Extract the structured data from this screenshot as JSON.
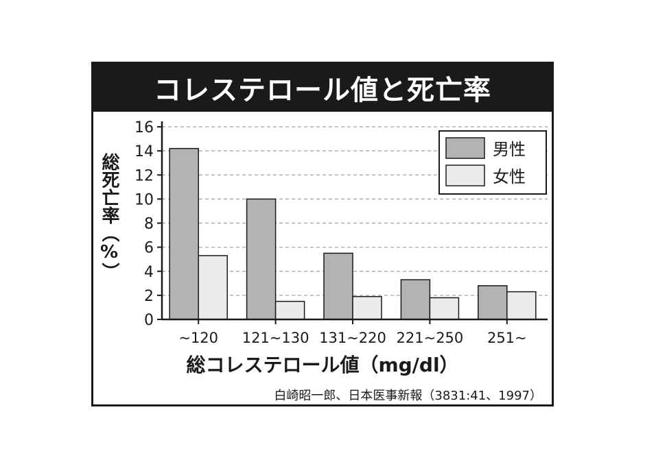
{
  "title": "コレステロール値と死亡率",
  "chart_data": {
    "type": "bar",
    "categories": [
      "~120",
      "121~130",
      "131~220",
      "221~250",
      "251~"
    ],
    "series": [
      {
        "name": "男性",
        "values": [
          14.2,
          10.0,
          5.5,
          3.3,
          2.8
        ],
        "color": "#b3b3b3"
      },
      {
        "name": "女性",
        "values": [
          5.3,
          1.5,
          1.9,
          1.8,
          2.3
        ],
        "color": "#ebebeb"
      }
    ],
    "ylim": [
      0,
      16
    ],
    "yticks": [
      0,
      2,
      4,
      6,
      8,
      10,
      12,
      14,
      16
    ],
    "ylabel": "総死亡率（%）",
    "xlabel": "総コレステロール値（mg/dl）",
    "grid": true,
    "legend": "top-right"
  },
  "source": "白崎昭一郎、日本医事新報（3831:41、1997）"
}
